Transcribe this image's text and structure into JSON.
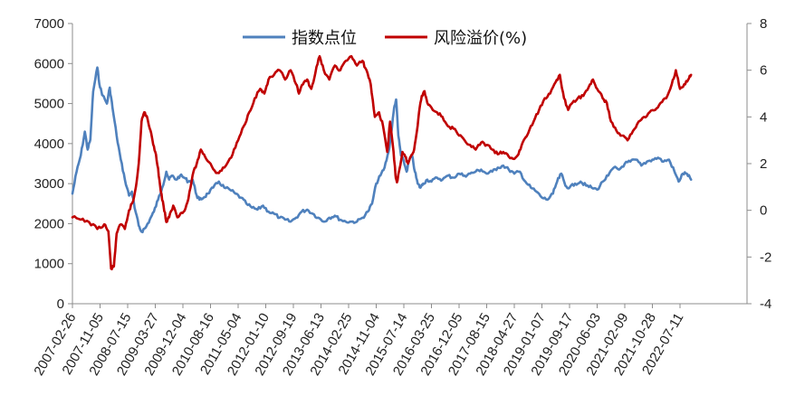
{
  "chart_data": {
    "type": "line",
    "legend_position": "top",
    "grid": false,
    "x_tick_labels": [
      "2007-02-26",
      "2007-11-05",
      "2008-07-15",
      "2009-03-27",
      "2009-12-04",
      "2010-08-16",
      "2011-05-04",
      "2012-01-10",
      "2012-09-19",
      "2013-06-13",
      "2014-02-25",
      "2014-11-04",
      "2015-07-14",
      "2016-03-25",
      "2016-12-05",
      "2017-08-15",
      "2018-04-27",
      "2019-01-07",
      "2019-09-17",
      "2020-06-03",
      "2021-02-09",
      "2021-10-28",
      "2022-07-11"
    ],
    "y_left": {
      "min": 0,
      "max": 7000,
      "ticks": [
        "0",
        "1000",
        "2000",
        "3000",
        "4000",
        "5000",
        "6000",
        "7000"
      ]
    },
    "y_right": {
      "min": -4,
      "max": 8,
      "ticks": [
        "-4",
        "-2",
        "0",
        "2",
        "4",
        "6",
        "8"
      ]
    },
    "series": [
      {
        "name": "指数点位",
        "axis": "left",
        "color": "#4f81bd",
        "points": [
          [
            0,
            2750
          ],
          [
            0.15,
            3300
          ],
          [
            0.3,
            3700
          ],
          [
            0.45,
            4300
          ],
          [
            0.55,
            3850
          ],
          [
            0.65,
            4100
          ],
          [
            0.75,
            5300
          ],
          [
            0.9,
            5900
          ],
          [
            1.0,
            5400
          ],
          [
            1.1,
            5200
          ],
          [
            1.25,
            5000
          ],
          [
            1.35,
            5400
          ],
          [
            1.45,
            4900
          ],
          [
            1.6,
            4200
          ],
          [
            1.75,
            3600
          ],
          [
            1.9,
            3100
          ],
          [
            2.05,
            2700
          ],
          [
            2.15,
            2800
          ],
          [
            2.25,
            2400
          ],
          [
            2.4,
            1950
          ],
          [
            2.5,
            1800
          ],
          [
            2.65,
            1900
          ],
          [
            2.8,
            2100
          ],
          [
            2.95,
            2300
          ],
          [
            3.1,
            2600
          ],
          [
            3.25,
            2900
          ],
          [
            3.4,
            3300
          ],
          [
            3.5,
            3100
          ],
          [
            3.6,
            3200
          ],
          [
            3.75,
            3100
          ],
          [
            3.9,
            3200
          ],
          [
            4.05,
            3150
          ],
          [
            4.2,
            3050
          ],
          [
            4.35,
            3100
          ],
          [
            4.5,
            2700
          ],
          [
            4.6,
            2600
          ],
          [
            4.75,
            2650
          ],
          [
            4.9,
            2750
          ],
          [
            5.1,
            2900
          ],
          [
            5.3,
            3050
          ],
          [
            5.5,
            2900
          ],
          [
            5.7,
            2850
          ],
          [
            5.9,
            2750
          ],
          [
            6.1,
            2650
          ],
          [
            6.3,
            2500
          ],
          [
            6.5,
            2400
          ],
          [
            6.7,
            2350
          ],
          [
            6.9,
            2450
          ],
          [
            7.1,
            2300
          ],
          [
            7.3,
            2250
          ],
          [
            7.5,
            2150
          ],
          [
            7.7,
            2100
          ],
          [
            7.9,
            2050
          ],
          [
            8.1,
            2150
          ],
          [
            8.3,
            2300
          ],
          [
            8.5,
            2350
          ],
          [
            8.7,
            2250
          ],
          [
            8.9,
            2150
          ],
          [
            9.1,
            2050
          ],
          [
            9.3,
            2150
          ],
          [
            9.5,
            2200
          ],
          [
            9.7,
            2100
          ],
          [
            9.9,
            2050
          ],
          [
            10.1,
            2050
          ],
          [
            10.3,
            2050
          ],
          [
            10.5,
            2150
          ],
          [
            10.7,
            2300
          ],
          [
            10.85,
            2500
          ],
          [
            11.0,
            3000
          ],
          [
            11.15,
            3200
          ],
          [
            11.3,
            3400
          ],
          [
            11.45,
            3800
          ],
          [
            11.55,
            4300
          ],
          [
            11.65,
            4900
          ],
          [
            11.72,
            5100
          ],
          [
            11.8,
            4200
          ],
          [
            11.9,
            3700
          ],
          [
            12.0,
            3550
          ],
          [
            12.1,
            3300
          ],
          [
            12.2,
            3600
          ],
          [
            12.3,
            3700
          ],
          [
            12.4,
            3300
          ],
          [
            12.5,
            3000
          ],
          [
            12.6,
            2900
          ],
          [
            12.7,
            3000
          ],
          [
            12.85,
            3100
          ],
          [
            13.0,
            3050
          ],
          [
            13.2,
            3150
          ],
          [
            13.4,
            3100
          ],
          [
            13.6,
            3200
          ],
          [
            13.8,
            3150
          ],
          [
            14.0,
            3250
          ],
          [
            14.2,
            3200
          ],
          [
            14.4,
            3250
          ],
          [
            14.6,
            3300
          ],
          [
            14.8,
            3350
          ],
          [
            15.0,
            3250
          ],
          [
            15.2,
            3300
          ],
          [
            15.4,
            3400
          ],
          [
            15.6,
            3450
          ],
          [
            15.8,
            3350
          ],
          [
            16.0,
            3250
          ],
          [
            16.2,
            3300
          ],
          [
            16.4,
            3050
          ],
          [
            16.6,
            2900
          ],
          [
            16.8,
            2800
          ],
          [
            17.0,
            2650
          ],
          [
            17.2,
            2600
          ],
          [
            17.4,
            2750
          ],
          [
            17.55,
            3050
          ],
          [
            17.7,
            3250
          ],
          [
            17.85,
            2950
          ],
          [
            18.0,
            2900
          ],
          [
            18.2,
            3000
          ],
          [
            18.4,
            3050
          ],
          [
            18.6,
            2950
          ],
          [
            18.8,
            2900
          ],
          [
            19.0,
            2850
          ],
          [
            19.2,
            3050
          ],
          [
            19.4,
            3200
          ],
          [
            19.6,
            3400
          ],
          [
            19.8,
            3350
          ],
          [
            20.0,
            3500
          ],
          [
            20.2,
            3550
          ],
          [
            20.4,
            3600
          ],
          [
            20.6,
            3450
          ],
          [
            20.8,
            3550
          ],
          [
            21.0,
            3600
          ],
          [
            21.2,
            3650
          ],
          [
            21.4,
            3550
          ],
          [
            21.6,
            3600
          ],
          [
            21.8,
            3300
          ],
          [
            21.95,
            3050
          ],
          [
            22.1,
            3250
          ],
          [
            22.25,
            3250
          ],
          [
            22.4,
            3100
          ]
        ]
      },
      {
        "name": "风险溢价(%)",
        "axis": "right",
        "color": "#c00000",
        "points": [
          [
            0,
            -0.3
          ],
          [
            0.3,
            -0.4
          ],
          [
            0.6,
            -0.5
          ],
          [
            0.9,
            -0.8
          ],
          [
            1.15,
            -0.6
          ],
          [
            1.3,
            -0.9
          ],
          [
            1.4,
            -2.5
          ],
          [
            1.5,
            -2.4
          ],
          [
            1.6,
            -1.0
          ],
          [
            1.75,
            -0.6
          ],
          [
            1.9,
            -0.8
          ],
          [
            2.05,
            0.0
          ],
          [
            2.2,
            0.4
          ],
          [
            2.3,
            1.0
          ],
          [
            2.4,
            2.0
          ],
          [
            2.5,
            3.8
          ],
          [
            2.6,
            4.2
          ],
          [
            2.7,
            4.0
          ],
          [
            2.8,
            3.5
          ],
          [
            2.9,
            3.0
          ],
          [
            3.0,
            2.5
          ],
          [
            3.1,
            1.8
          ],
          [
            3.2,
            0.8
          ],
          [
            3.3,
            0.2
          ],
          [
            3.4,
            -0.5
          ],
          [
            3.5,
            -0.3
          ],
          [
            3.65,
            0.2
          ],
          [
            3.8,
            -0.3
          ],
          [
            3.95,
            -0.1
          ],
          [
            4.1,
            0.1
          ],
          [
            4.2,
            0.5
          ],
          [
            4.35,
            1.5
          ],
          [
            4.5,
            2.0
          ],
          [
            4.65,
            2.6
          ],
          [
            4.8,
            2.3
          ],
          [
            5.0,
            2.0
          ],
          [
            5.2,
            1.6
          ],
          [
            5.4,
            1.7
          ],
          [
            5.6,
            2.0
          ],
          [
            5.8,
            2.4
          ],
          [
            6.0,
            3.0
          ],
          [
            6.2,
            3.6
          ],
          [
            6.4,
            4.2
          ],
          [
            6.6,
            4.8
          ],
          [
            6.8,
            5.2
          ],
          [
            6.95,
            5.0
          ],
          [
            7.1,
            5.6
          ],
          [
            7.3,
            5.8
          ],
          [
            7.5,
            6.0
          ],
          [
            7.7,
            5.6
          ],
          [
            7.9,
            6.0
          ],
          [
            8.1,
            5.4
          ],
          [
            8.2,
            5.0
          ],
          [
            8.35,
            5.4
          ],
          [
            8.5,
            5.6
          ],
          [
            8.65,
            5.2
          ],
          [
            8.8,
            5.9
          ],
          [
            8.95,
            6.6
          ],
          [
            9.1,
            6.0
          ],
          [
            9.3,
            5.6
          ],
          [
            9.5,
            6.2
          ],
          [
            9.7,
            6.0
          ],
          [
            9.9,
            6.4
          ],
          [
            10.1,
            6.6
          ],
          [
            10.3,
            6.2
          ],
          [
            10.5,
            6.4
          ],
          [
            10.65,
            6.0
          ],
          [
            10.8,
            5.4
          ],
          [
            10.95,
            4.0
          ],
          [
            11.1,
            4.2
          ],
          [
            11.25,
            3.6
          ],
          [
            11.4,
            2.5
          ],
          [
            11.5,
            3.8
          ],
          [
            11.6,
            2.8
          ],
          [
            11.7,
            1.5
          ],
          [
            11.75,
            1.2
          ],
          [
            11.85,
            1.8
          ],
          [
            11.95,
            2.5
          ],
          [
            12.05,
            2.3
          ],
          [
            12.15,
            2.0
          ],
          [
            12.25,
            2.3
          ],
          [
            12.35,
            2.5
          ],
          [
            12.45,
            3.2
          ],
          [
            12.55,
            4.2
          ],
          [
            12.65,
            4.9
          ],
          [
            12.75,
            5.1
          ],
          [
            12.85,
            4.6
          ],
          [
            13.0,
            4.4
          ],
          [
            13.2,
            4.2
          ],
          [
            13.4,
            4.0
          ],
          [
            13.6,
            3.6
          ],
          [
            13.8,
            3.5
          ],
          [
            14.0,
            3.2
          ],
          [
            14.2,
            3.0
          ],
          [
            14.4,
            2.8
          ],
          [
            14.6,
            2.6
          ],
          [
            14.8,
            2.9
          ],
          [
            15.0,
            2.8
          ],
          [
            15.2,
            2.6
          ],
          [
            15.4,
            2.4
          ],
          [
            15.6,
            2.5
          ],
          [
            15.8,
            2.3
          ],
          [
            16.0,
            2.2
          ],
          [
            16.15,
            2.4
          ],
          [
            16.3,
            2.9
          ],
          [
            16.5,
            3.3
          ],
          [
            16.7,
            3.8
          ],
          [
            16.9,
            4.3
          ],
          [
            17.1,
            4.8
          ],
          [
            17.3,
            5.0
          ],
          [
            17.5,
            5.5
          ],
          [
            17.65,
            5.8
          ],
          [
            17.8,
            4.8
          ],
          [
            17.95,
            4.3
          ],
          [
            18.1,
            4.6
          ],
          [
            18.3,
            4.8
          ],
          [
            18.5,
            4.9
          ],
          [
            18.7,
            5.3
          ],
          [
            18.85,
            5.6
          ],
          [
            19.0,
            5.2
          ],
          [
            19.2,
            4.8
          ],
          [
            19.35,
            4.6
          ],
          [
            19.5,
            3.8
          ],
          [
            19.7,
            3.4
          ],
          [
            19.9,
            3.2
          ],
          [
            20.1,
            3.0
          ],
          [
            20.3,
            3.4
          ],
          [
            20.5,
            3.8
          ],
          [
            20.7,
            4.0
          ],
          [
            20.9,
            4.2
          ],
          [
            21.1,
            4.3
          ],
          [
            21.3,
            4.6
          ],
          [
            21.5,
            4.8
          ],
          [
            21.7,
            5.4
          ],
          [
            21.85,
            6.0
          ],
          [
            22.0,
            5.2
          ],
          [
            22.15,
            5.4
          ],
          [
            22.3,
            5.6
          ],
          [
            22.4,
            5.8
          ]
        ]
      }
    ]
  }
}
